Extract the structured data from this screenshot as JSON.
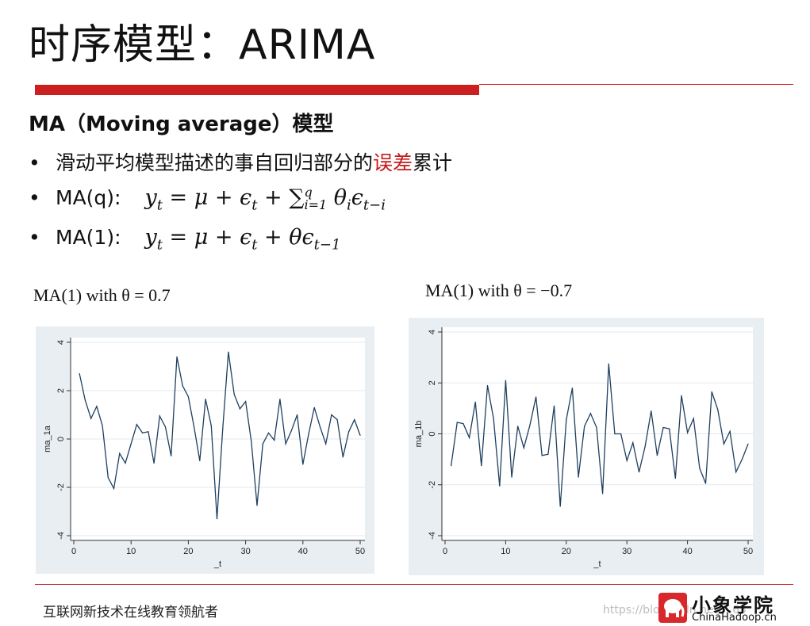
{
  "slide": {
    "title": "时序模型：ARIMA",
    "subtitle": "MA（Moving average）模型",
    "bullets": [
      {
        "marker": "•",
        "text_before": "滑动平均模型描述的事自回归部分的",
        "highlight": "误差",
        "text_after": "累计"
      },
      {
        "marker": "•",
        "label": "MA(q):"
      },
      {
        "marker": "•",
        "label": "MA(1):"
      }
    ],
    "footer": "互联网新技术在线教育领航者",
    "logo_cn": "小象学院",
    "logo_en": "ChinaHadoop.cn",
    "watermark": "https://blog.csdn.net/...63",
    "accent_color": "#cc1f1f"
  },
  "chart_data": [
    {
      "type": "line",
      "title": "MA(1) with θ = 0.7",
      "xlabel": "_t",
      "ylabel": "ma_1a",
      "xlim": [
        0,
        50
      ],
      "ylim": [
        -4,
        4
      ],
      "xticks": [
        0,
        10,
        20,
        30,
        40,
        50
      ],
      "yticks": [
        -4,
        -2,
        0,
        2,
        4
      ],
      "grid": true,
      "color": "#1f3f5f",
      "x": [
        1,
        2,
        3,
        4,
        5,
        6,
        7,
        8,
        9,
        10,
        11,
        12,
        13,
        14,
        15,
        16,
        17,
        18,
        19,
        20,
        21,
        22,
        23,
        24,
        25,
        26,
        27,
        28,
        29,
        30,
        31,
        32,
        33,
        34,
        35,
        36,
        37,
        38,
        39,
        40,
        41,
        42,
        43,
        44,
        45,
        46,
        47,
        48,
        49,
        50
      ],
      "y": [
        2.7,
        1.6,
        0.85,
        1.35,
        0.55,
        -1.6,
        -2.05,
        -0.6,
        -1.0,
        -0.2,
        0.6,
        0.25,
        0.3,
        -1.0,
        0.95,
        0.5,
        -0.7,
        3.4,
        2.2,
        1.75,
        0.5,
        -0.9,
        1.65,
        0.55,
        -3.3,
        0.4,
        3.6,
        1.85,
        1.25,
        1.55,
        -0.1,
        -2.75,
        -0.2,
        0.25,
        -0.05,
        1.65,
        -0.2,
        0.35,
        1.0,
        -1.05,
        0.2,
        1.3,
        0.5,
        -0.2,
        1.0,
        0.8,
        -0.75,
        0.3,
        0.8,
        0.15
      ]
    },
    {
      "type": "line",
      "title": "MA(1) with θ = −0.7",
      "xlabel": "_t",
      "ylabel": "ma_1b",
      "xlim": [
        0,
        50
      ],
      "ylim": [
        -4,
        4
      ],
      "xticks": [
        0,
        10,
        20,
        30,
        40,
        50
      ],
      "yticks": [
        -4,
        -2,
        0,
        2,
        4
      ],
      "grid": true,
      "color": "#1f3f5f",
      "x": [
        1,
        2,
        3,
        4,
        5,
        6,
        7,
        8,
        9,
        10,
        11,
        12,
        13,
        14,
        15,
        16,
        17,
        18,
        19,
        20,
        21,
        22,
        23,
        24,
        25,
        26,
        27,
        28,
        29,
        30,
        31,
        32,
        33,
        34,
        35,
        36,
        37,
        38,
        39,
        40,
        41,
        42,
        43,
        44,
        45,
        46,
        47,
        48,
        49,
        50
      ],
      "y": [
        -1.25,
        0.45,
        0.4,
        -0.15,
        1.25,
        -1.25,
        1.9,
        0.6,
        -2.05,
        2.1,
        -1.7,
        0.3,
        -0.55,
        0.35,
        1.45,
        -0.85,
        -0.8,
        1.1,
        -2.85,
        0.55,
        1.8,
        -1.7,
        0.3,
        0.8,
        0.25,
        -2.35,
        2.75,
        0.0,
        0.0,
        -1.05,
        -0.35,
        -1.5,
        -0.5,
        0.9,
        -0.85,
        0.25,
        0.2,
        -1.75,
        1.5,
        0.05,
        0.6,
        -1.35,
        -1.95,
        1.65,
        0.95,
        -0.4,
        0.1,
        -1.5,
        -1.0,
        -0.4
      ]
    }
  ]
}
